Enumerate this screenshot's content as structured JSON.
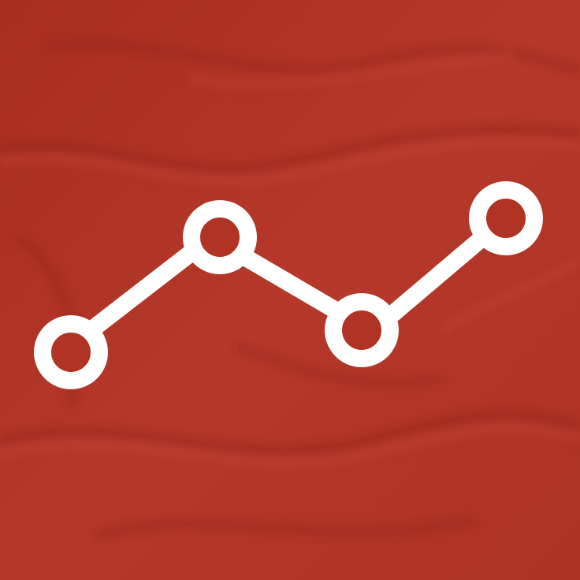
{
  "background": {
    "kind": "red-fabric-texture",
    "base_color": "#b03323",
    "highlight_color": "#c44432",
    "shadow_color": "#8e2418"
  },
  "icon": {
    "name": "line-chart-icon",
    "color": "#ffffff",
    "node_count": 4
  }
}
